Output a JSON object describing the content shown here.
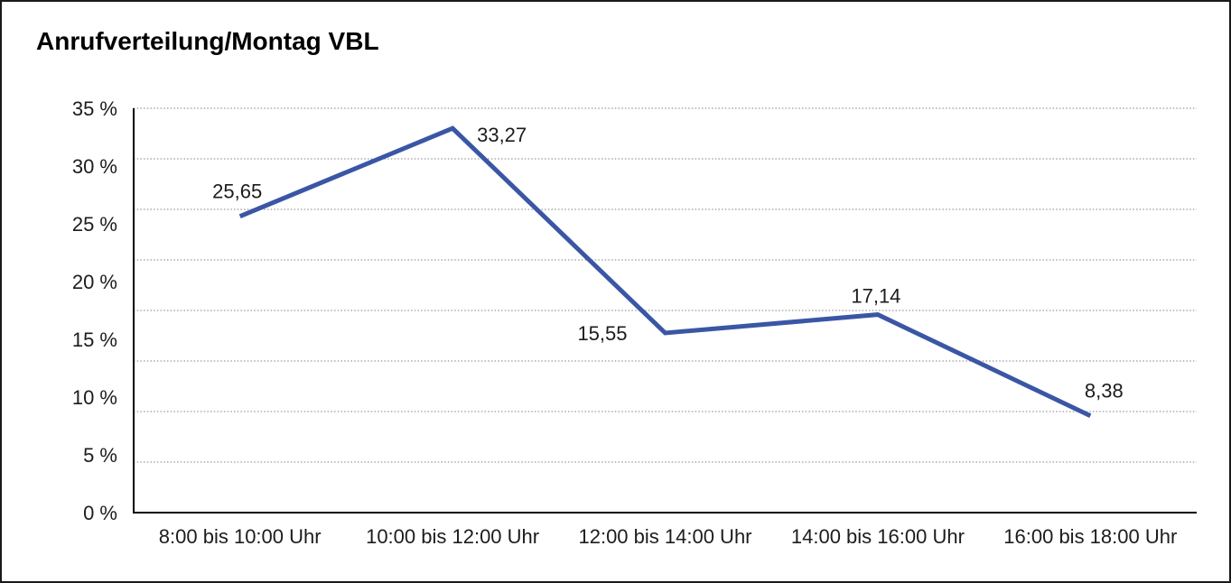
{
  "page": {
    "title": "Anrufverteilung/Montag VBL"
  },
  "chart_data": {
    "type": "line",
    "title": "Anrufverteilung/Montag VBL",
    "categories": [
      "8:00 bis 10:00 Uhr",
      "10:00 bis 12:00 Uhr",
      "12:00 bis 14:00 Uhr",
      "14:00 bis 16:00 Uhr",
      "16:00 bis 18:00 Uhr"
    ],
    "values": [
      25.65,
      33.27,
      15.55,
      17.14,
      8.38
    ],
    "value_labels": [
      "25,65",
      "33,27",
      "15,55",
      "17,14",
      "8,38"
    ],
    "y_tick_labels": [
      "35 %",
      "30 %",
      "25 %",
      "20 %",
      "15 %",
      "10 %",
      "5 %",
      "0 %"
    ],
    "ylim": [
      0,
      35
    ],
    "y_tick_step": 5,
    "xlabel": "",
    "ylabel": "",
    "grid": "horizontal-dotted",
    "legend_position": "none",
    "marker": "none",
    "colors": {
      "line": "#3A56A5",
      "text": "#1c1c1c",
      "grid": "#808080",
      "axis": "#000000",
      "frame_border": "#1a1a1a",
      "background": "#ffffff"
    }
  }
}
